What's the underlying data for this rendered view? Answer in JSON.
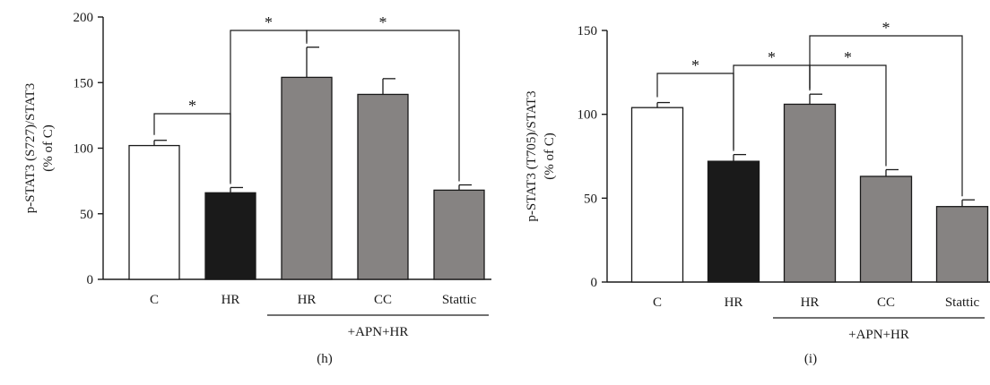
{
  "chart_data": [
    {
      "type": "bar",
      "panel_label": "(h)",
      "ylabel": "p-STAT3 (S727)/STAT3",
      "ylabel_sub": "(% of C)",
      "ylim": [
        0,
        200
      ],
      "yticks": [
        0,
        50,
        100,
        150,
        200
      ],
      "categories": [
        "C",
        "HR",
        "HR",
        "CC",
        "Stattic"
      ],
      "values": [
        102,
        66,
        154,
        141,
        68
      ],
      "errors": [
        4,
        4,
        23,
        12,
        4
      ],
      "bar_colors": [
        "#ffffff",
        "#1a1a1a",
        "#868382",
        "#868382",
        "#868382"
      ],
      "group_label": "+APN+HR",
      "significance": [
        {
          "from": 0,
          "to": 1,
          "label": "*"
        },
        {
          "from": 1,
          "to": 2,
          "label": "*"
        },
        {
          "from": 2,
          "to": 4,
          "label": "*"
        }
      ]
    },
    {
      "type": "bar",
      "panel_label": "(i)",
      "ylabel": "p-STAT3 (T705)/STAT3",
      "ylabel_sub": "(% of C)",
      "ylim": [
        0,
        150
      ],
      "yticks": [
        0,
        50,
        100,
        150
      ],
      "categories": [
        "C",
        "HR",
        "HR",
        "CC",
        "Stattic"
      ],
      "values": [
        104,
        72,
        106,
        63,
        45
      ],
      "errors": [
        3,
        4,
        6,
        4,
        4
      ],
      "bar_colors": [
        "#ffffff",
        "#1a1a1a",
        "#868382",
        "#868382",
        "#868382"
      ],
      "group_label": "+APN+HR",
      "significance": [
        {
          "from": 0,
          "to": 1,
          "label": "*"
        },
        {
          "from": 1,
          "to": 2,
          "label": "*"
        },
        {
          "from": 2,
          "to": 3,
          "label": "*"
        },
        {
          "from": 2,
          "to": 4,
          "label": "*"
        }
      ]
    }
  ]
}
